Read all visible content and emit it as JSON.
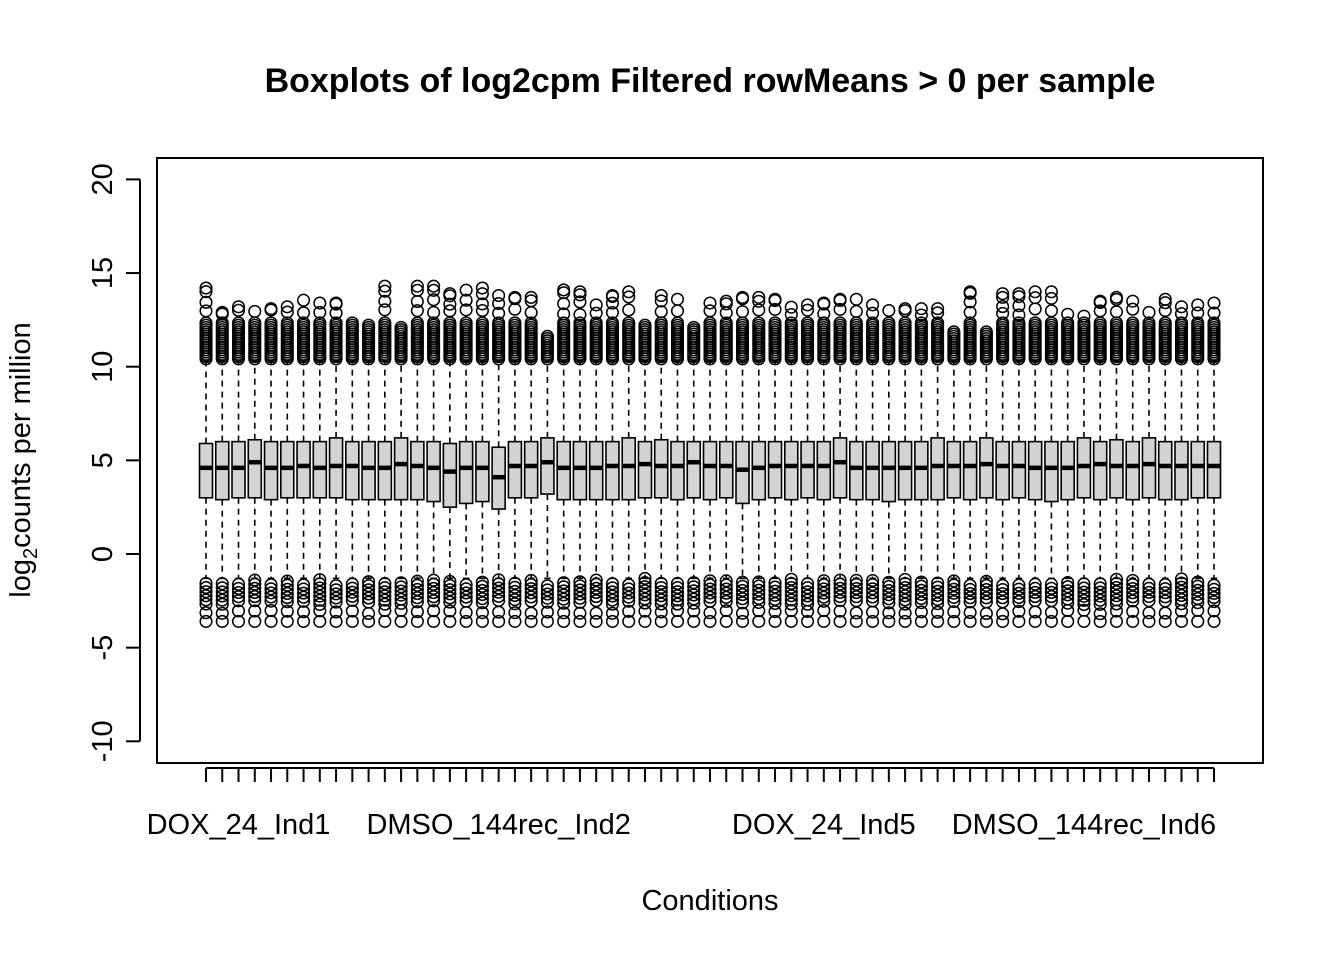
{
  "chart_data": {
    "type": "boxplot",
    "title": "Boxplots of log2cpm Filtered rowMeans > 0 per sample",
    "xlabel": "Conditions",
    "ylabel": {
      "pre": "log",
      "sub": "2",
      "post": "counts per million"
    },
    "ylim": [
      -11,
      21
    ],
    "yticks": [
      -10,
      -5,
      0,
      5,
      10,
      15,
      20
    ],
    "n_samples": 63,
    "visible_category_labels": [
      {
        "index": 2,
        "label": "DOX_24_Ind1"
      },
      {
        "index": 18,
        "label": "DMSO_144rec_Ind2"
      },
      {
        "index": 38,
        "label": "DOX_24_Ind5"
      },
      {
        "index": 54,
        "label": "DMSO_144rec_Ind6"
      }
    ],
    "medians": [
      4.6,
      4.6,
      4.6,
      4.9,
      4.6,
      4.6,
      4.7,
      4.6,
      4.7,
      4.7,
      4.6,
      4.6,
      4.8,
      4.7,
      4.6,
      4.4,
      4.6,
      4.6,
      4.1,
      4.7,
      4.7,
      4.9,
      4.6,
      4.6,
      4.6,
      4.7,
      4.7,
      4.8,
      4.7,
      4.7,
      4.9,
      4.7,
      4.7,
      4.5,
      4.6,
      4.7,
      4.7,
      4.7,
      4.7,
      4.9,
      4.6,
      4.6,
      4.6,
      4.6,
      4.6,
      4.7,
      4.7,
      4.7,
      4.8,
      4.7,
      4.7,
      4.6,
      4.6,
      4.6,
      4.7,
      4.8,
      4.7,
      4.7,
      4.8,
      4.7,
      4.7,
      4.7,
      4.7
    ],
    "q1": [
      3.0,
      2.9,
      3.0,
      3.0,
      2.9,
      3.0,
      3.0,
      3.0,
      3.0,
      2.9,
      2.9,
      2.9,
      2.9,
      2.9,
      2.8,
      2.5,
      2.7,
      2.8,
      2.4,
      3.0,
      3.0,
      3.2,
      2.9,
      2.9,
      2.9,
      2.9,
      2.9,
      3.0,
      3.0,
      2.9,
      3.0,
      2.9,
      3.0,
      2.7,
      2.9,
      3.0,
      2.9,
      3.0,
      2.9,
      3.0,
      2.9,
      2.9,
      2.8,
      2.9,
      2.9,
      2.9,
      3.0,
      2.9,
      3.0,
      2.9,
      3.0,
      2.9,
      2.8,
      2.9,
      3.0,
      2.9,
      3.0,
      2.9,
      3.0,
      2.9,
      2.9,
      3.0,
      3.0
    ],
    "q3": [
      5.9,
      6.0,
      6.0,
      6.1,
      6.0,
      6.0,
      6.0,
      6.0,
      6.2,
      6.0,
      6.0,
      6.0,
      6.2,
      6.0,
      6.0,
      5.9,
      6.0,
      6.0,
      5.7,
      6.0,
      6.0,
      6.2,
      6.0,
      6.0,
      6.0,
      6.0,
      6.2,
      6.0,
      6.1,
      6.0,
      6.0,
      6.0,
      6.0,
      6.0,
      6.0,
      6.0,
      6.0,
      6.0,
      6.0,
      6.2,
      6.0,
      6.0,
      6.0,
      6.0,
      6.0,
      6.2,
      6.0,
      6.0,
      6.2,
      6.0,
      6.0,
      6.0,
      6.0,
      6.0,
      6.2,
      6.0,
      6.1,
      6.0,
      6.2,
      6.0,
      6.0,
      6.0,
      6.0
    ],
    "whisker_low": -1.3,
    "whisker_high": 10.3,
    "outlier_low_range": [
      -3.6,
      -1.3
    ],
    "outlier_high_max": [
      14.2,
      12.9,
      13.2,
      13.0,
      13.1,
      13.2,
      13.6,
      13.4,
      13.4,
      12.4,
      12.3,
      14.3,
      12.2,
      14.3,
      14.3,
      13.9,
      14.1,
      14.2,
      13.8,
      13.7,
      13.7,
      11.7,
      14.1,
      14.0,
      13.3,
      13.8,
      14.0,
      12.3,
      13.8,
      13.6,
      12.1,
      13.4,
      13.5,
      13.7,
      13.7,
      13.6,
      13.2,
      13.3,
      13.4,
      13.6,
      13.6,
      13.3,
      13.0,
      13.1,
      13.1,
      13.1,
      11.9,
      14.0,
      11.9,
      13.9,
      13.9,
      14.0,
      14.0,
      12.8,
      12.7,
      13.5,
      13.7,
      13.5,
      12.9,
      13.6,
      13.2,
      13.3,
      13.4
    ],
    "colors": {
      "box_fill": "#d3d3d3",
      "stroke": "#000000",
      "background": "#ffffff"
    },
    "grid": false
  }
}
